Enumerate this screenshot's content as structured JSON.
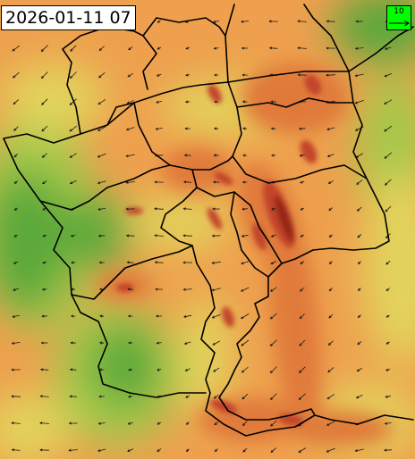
{
  "map": {
    "valid_time": "2026-01-11 07",
    "reference_arrow": {
      "value": "10",
      "background_color": "#00ff00"
    },
    "colors": {
      "low": "#5aa83a",
      "low_mid": "#a4c94a",
      "mid": "#e2d45c",
      "mid_high": "#eea04e",
      "high": "#e07a3a",
      "very_high": "#c2452a",
      "extreme": "#962818",
      "border": "#000000",
      "wind_arrow": "#1a1a1a"
    }
  }
}
